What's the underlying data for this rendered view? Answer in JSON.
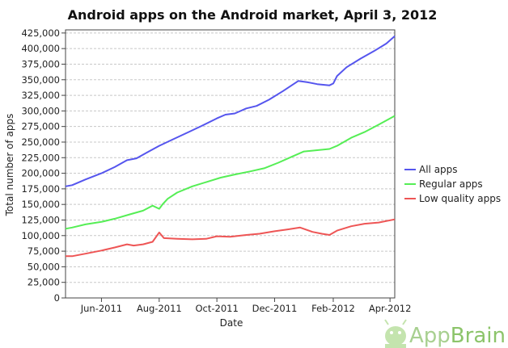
{
  "chart_data": {
    "type": "line",
    "title": "Android apps on the Android market, April 3, 2012",
    "xlabel": "Date",
    "ylabel": "Total number of apps",
    "ylim": [
      0,
      430000
    ],
    "yticks": [
      0,
      25000,
      50000,
      75000,
      100000,
      125000,
      150000,
      175000,
      200000,
      225000,
      250000,
      275000,
      300000,
      325000,
      350000,
      375000,
      400000,
      425000
    ],
    "ytick_labels": [
      "0",
      "25,000",
      "50,000",
      "75,000",
      "100,000",
      "125,000",
      "150,000",
      "175,000",
      "200,000",
      "225,000",
      "250,000",
      "275,000",
      "300,000",
      "325,000",
      "350,000",
      "375,000",
      "400,000",
      "425,000"
    ],
    "xlim": [
      "2011-04-24",
      "2012-04-06"
    ],
    "xticks": [
      "2011-06-01",
      "2011-08-01",
      "2011-10-01",
      "2011-12-01",
      "2012-02-01",
      "2012-04-01"
    ],
    "xtick_labels": [
      "Jun-2011",
      "Aug-2011",
      "Oct-2011",
      "Dec-2011",
      "Feb-2012",
      "Apr-2012"
    ],
    "grid": true,
    "legend_position": "right",
    "series": [
      {
        "name": "All apps",
        "color": "#5555ee",
        "points": [
          [
            "2011-04-24",
            179000
          ],
          [
            "2011-05-01",
            181000
          ],
          [
            "2011-05-15",
            190000
          ],
          [
            "2011-06-01",
            200000
          ],
          [
            "2011-06-15",
            210000
          ],
          [
            "2011-06-28",
            221000
          ],
          [
            "2011-07-08",
            224000
          ],
          [
            "2011-07-20",
            234000
          ],
          [
            "2011-08-01",
            244000
          ],
          [
            "2011-08-15",
            254000
          ],
          [
            "2011-09-01",
            266000
          ],
          [
            "2011-09-15",
            276000
          ],
          [
            "2011-10-01",
            288000
          ],
          [
            "2011-10-10",
            294000
          ],
          [
            "2011-10-20",
            296000
          ],
          [
            "2011-11-01",
            304000
          ],
          [
            "2011-11-12",
            308000
          ],
          [
            "2011-11-25",
            318000
          ],
          [
            "2011-12-10",
            332000
          ],
          [
            "2011-12-20",
            342000
          ],
          [
            "2011-12-26",
            348000
          ],
          [
            "2012-01-05",
            346000
          ],
          [
            "2012-01-15",
            343000
          ],
          [
            "2012-01-28",
            341000
          ],
          [
            "2012-02-01",
            344000
          ],
          [
            "2012-02-05",
            356000
          ],
          [
            "2012-02-15",
            370000
          ],
          [
            "2012-03-01",
            384000
          ],
          [
            "2012-03-15",
            396000
          ],
          [
            "2012-03-28",
            408000
          ],
          [
            "2012-04-06",
            420000
          ]
        ]
      },
      {
        "name": "Regular apps",
        "color": "#55ee55",
        "points": [
          [
            "2011-04-24",
            111000
          ],
          [
            "2011-05-01",
            113000
          ],
          [
            "2011-05-15",
            118000
          ],
          [
            "2011-06-01",
            122000
          ],
          [
            "2011-06-15",
            127000
          ],
          [
            "2011-07-01",
            134000
          ],
          [
            "2011-07-15",
            140000
          ],
          [
            "2011-07-25",
            148000
          ],
          [
            "2011-08-01",
            143000
          ],
          [
            "2011-08-05",
            151000
          ],
          [
            "2011-08-10",
            159000
          ],
          [
            "2011-08-20",
            169000
          ],
          [
            "2011-09-05",
            179000
          ],
          [
            "2011-09-20",
            186000
          ],
          [
            "2011-10-05",
            193000
          ],
          [
            "2011-10-20",
            198000
          ],
          [
            "2011-11-05",
            203000
          ],
          [
            "2011-11-20",
            208000
          ],
          [
            "2011-12-05",
            217000
          ],
          [
            "2011-12-20",
            227000
          ],
          [
            "2012-01-01",
            235000
          ],
          [
            "2012-01-15",
            237000
          ],
          [
            "2012-01-28",
            239000
          ],
          [
            "2012-02-05",
            244000
          ],
          [
            "2012-02-20",
            257000
          ],
          [
            "2012-03-05",
            266000
          ],
          [
            "2012-03-20",
            278000
          ],
          [
            "2012-04-06",
            292000
          ]
        ]
      },
      {
        "name": "Low quality apps",
        "color": "#ee5555",
        "points": [
          [
            "2011-04-24",
            67000
          ],
          [
            "2011-05-01",
            67000
          ],
          [
            "2011-05-15",
            71000
          ],
          [
            "2011-06-01",
            76000
          ],
          [
            "2011-06-15",
            81000
          ],
          [
            "2011-06-28",
            86000
          ],
          [
            "2011-07-05",
            84000
          ],
          [
            "2011-07-15",
            86000
          ],
          [
            "2011-07-25",
            90000
          ],
          [
            "2011-08-01",
            105000
          ],
          [
            "2011-08-06",
            96000
          ],
          [
            "2011-08-20",
            95000
          ],
          [
            "2011-09-05",
            94000
          ],
          [
            "2011-09-20",
            95000
          ],
          [
            "2011-10-01",
            99000
          ],
          [
            "2011-10-15",
            98000
          ],
          [
            "2011-11-01",
            101000
          ],
          [
            "2011-11-15",
            103000
          ],
          [
            "2011-12-01",
            107000
          ],
          [
            "2011-12-15",
            110000
          ],
          [
            "2011-12-28",
            113000
          ],
          [
            "2012-01-10",
            106000
          ],
          [
            "2012-01-20",
            103000
          ],
          [
            "2012-01-28",
            101000
          ],
          [
            "2012-02-05",
            108000
          ],
          [
            "2012-02-20",
            115000
          ],
          [
            "2012-03-05",
            119000
          ],
          [
            "2012-03-20",
            121000
          ],
          [
            "2012-04-06",
            126000
          ]
        ]
      }
    ]
  },
  "brand": {
    "name_part1": "App",
    "name_part2": "Brain"
  }
}
